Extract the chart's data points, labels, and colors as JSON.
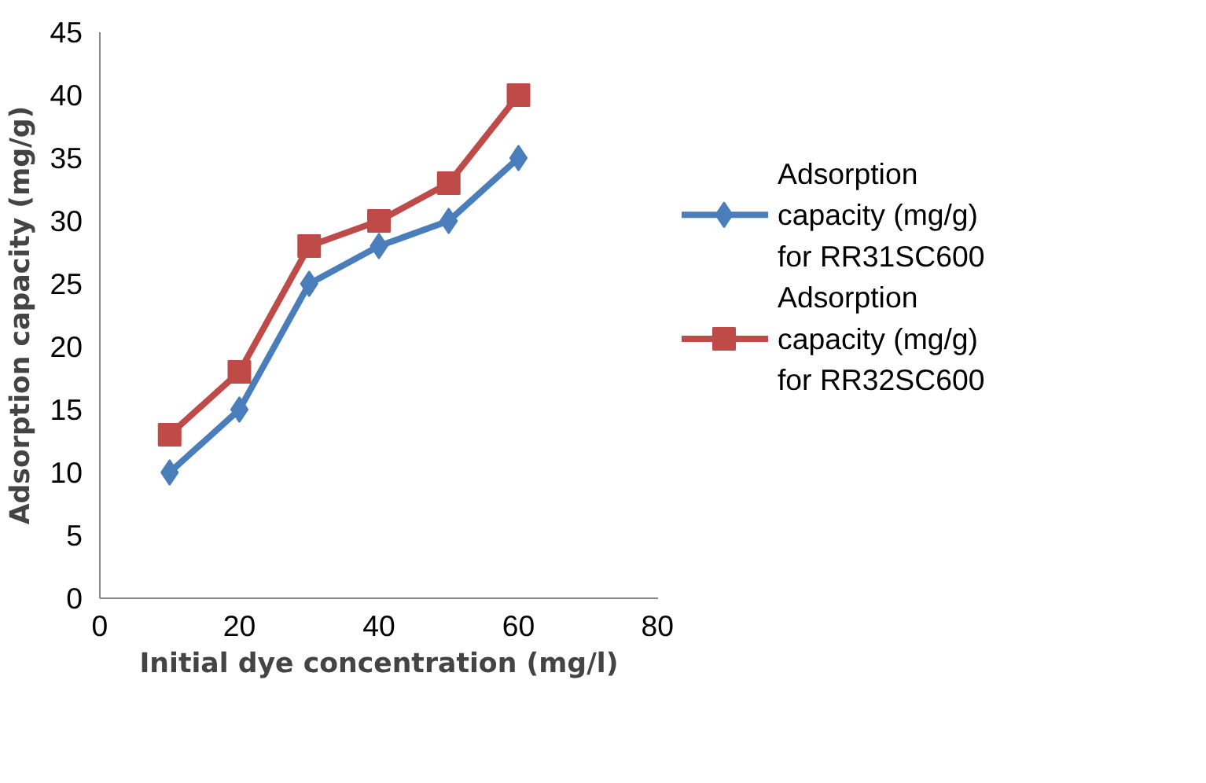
{
  "chart_data": {
    "type": "line",
    "xlabel": "Initial dye concentration (mg/l)",
    "ylabel": "Adsorption capacity (mg/g)",
    "x": [
      10,
      20,
      30,
      40,
      50,
      60
    ],
    "series": [
      {
        "name": "Adsorption capacity (mg/g) for RR31SC600",
        "color": "#4a7ebb",
        "marker": "diamond",
        "values": [
          10,
          15,
          25,
          28,
          30,
          35
        ]
      },
      {
        "name": "Adsorption capacity (mg/g) for RR32SC600",
        "color": "#be4b48",
        "marker": "square",
        "values": [
          13,
          18,
          28,
          30,
          33,
          40
        ]
      }
    ],
    "xlim": [
      0,
      80
    ],
    "xticks": [
      0,
      20,
      40,
      60,
      80
    ],
    "ylim": [
      0,
      45
    ],
    "yticks": [
      0,
      5,
      10,
      15,
      20,
      25,
      30,
      35,
      40,
      45
    ],
    "grid": false,
    "legend": "right",
    "line_style": "solid"
  }
}
